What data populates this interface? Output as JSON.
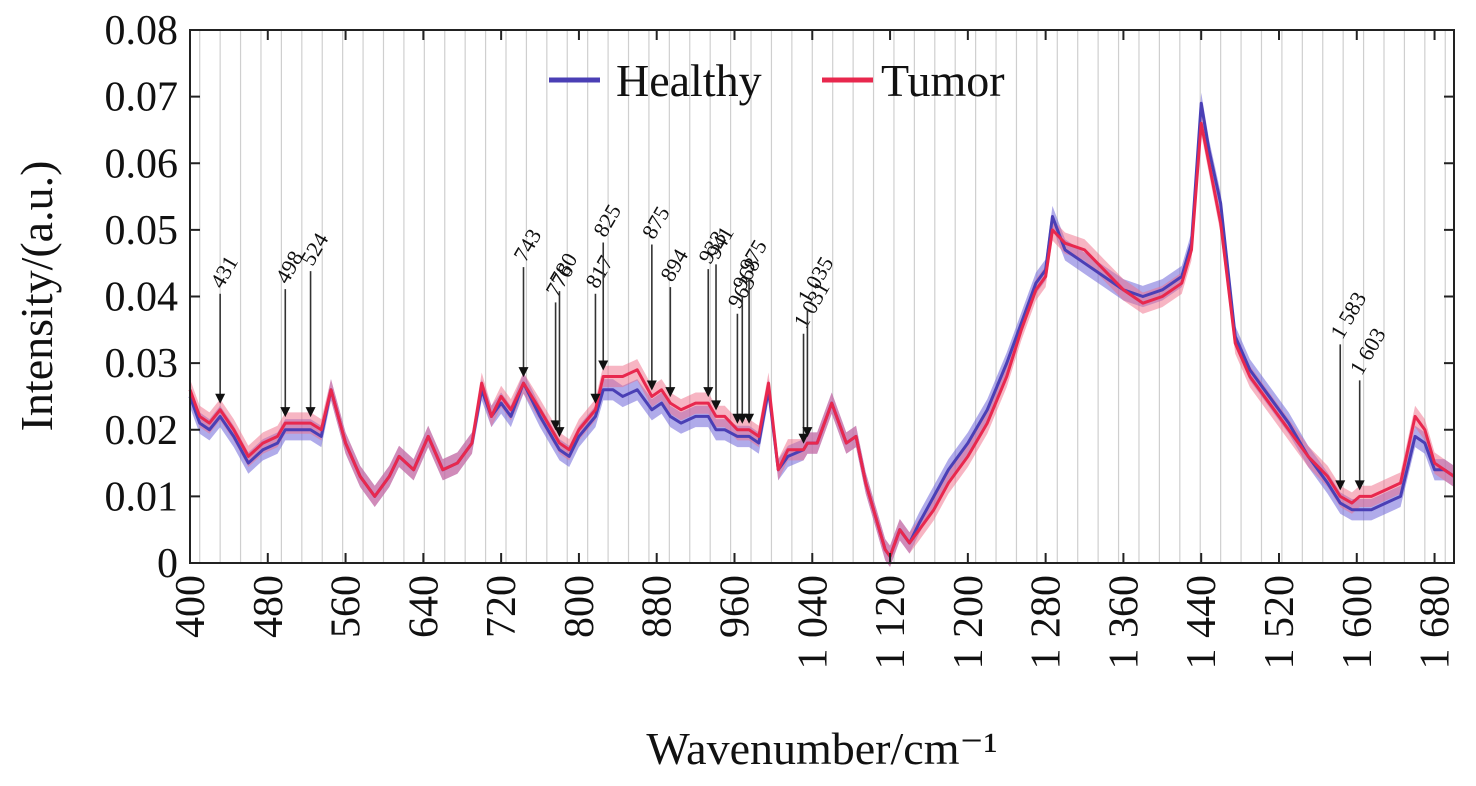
{
  "chart_data": {
    "type": "line",
    "xlabel": "Wavenumber/cm⁻¹",
    "ylabel": "Intensity/(a.u.)",
    "xlim": [
      400,
      1700
    ],
    "ylim": [
      0,
      0.08
    ],
    "x_ticks": [
      400,
      480,
      560,
      640,
      720,
      800,
      880,
      960,
      1040,
      1120,
      1200,
      1280,
      1360,
      1440,
      1520,
      1600,
      1680
    ],
    "x_tick_labels": [
      "400",
      "480",
      "560",
      "640",
      "720",
      "800",
      "880",
      "960",
      "1 040",
      "1 120",
      "1 200",
      "1 280",
      "1 360",
      "1 440",
      "1 520",
      "1 600",
      "1 680"
    ],
    "y_ticks": [
      0,
      0.01,
      0.02,
      0.03,
      0.04,
      0.05,
      0.06,
      0.07,
      0.08
    ],
    "y_tick_labels": [
      "0",
      "0.01",
      "0.02",
      "0.03",
      "0.04",
      "0.05",
      "0.06",
      "0.07",
      "0.08"
    ],
    "legend_position": "top-center",
    "grid": "vertical lines at marked peaks",
    "x": [
      400,
      410,
      420,
      431,
      445,
      460,
      475,
      490,
      498,
      510,
      524,
      535,
      545,
      560,
      575,
      590,
      605,
      615,
      630,
      645,
      660,
      675,
      690,
      700,
      710,
      720,
      730,
      743,
      760,
      776,
      780,
      790,
      800,
      817,
      825,
      835,
      845,
      860,
      875,
      885,
      894,
      905,
      920,
      933,
      941,
      950,
      963,
      968,
      975,
      985,
      995,
      1005,
      1015,
      1031,
      1035,
      1045,
      1060,
      1075,
      1085,
      1095,
      1105,
      1115,
      1120,
      1130,
      1140,
      1150,
      1165,
      1180,
      1200,
      1220,
      1240,
      1255,
      1270,
      1280,
      1287,
      1300,
      1320,
      1340,
      1360,
      1380,
      1400,
      1420,
      1430,
      1440,
      1448,
      1460,
      1475,
      1490,
      1510,
      1530,
      1550,
      1570,
      1583,
      1595,
      1603,
      1615,
      1630,
      1645,
      1660,
      1670,
      1680,
      1690,
      1700
    ],
    "series": [
      {
        "name": "Healthy",
        "color": "#4a3fb5",
        "band_color": "#6f66d9",
        "values": [
          0.025,
          0.021,
          0.02,
          0.022,
          0.019,
          0.015,
          0.017,
          0.018,
          0.02,
          0.02,
          0.02,
          0.019,
          0.026,
          0.018,
          0.013,
          0.01,
          0.013,
          0.016,
          0.014,
          0.019,
          0.014,
          0.015,
          0.018,
          0.026,
          0.022,
          0.024,
          0.022,
          0.027,
          0.022,
          0.018,
          0.017,
          0.016,
          0.019,
          0.022,
          0.026,
          0.026,
          0.025,
          0.026,
          0.023,
          0.024,
          0.022,
          0.021,
          0.022,
          0.022,
          0.02,
          0.02,
          0.019,
          0.019,
          0.019,
          0.018,
          0.026,
          0.014,
          0.016,
          0.017,
          0.018,
          0.018,
          0.024,
          0.018,
          0.019,
          0.012,
          0.007,
          0.002,
          0.001,
          0.005,
          0.003,
          0.006,
          0.01,
          0.014,
          0.018,
          0.023,
          0.03,
          0.036,
          0.042,
          0.044,
          0.052,
          0.047,
          0.045,
          0.043,
          0.041,
          0.04,
          0.041,
          0.043,
          0.048,
          0.069,
          0.062,
          0.054,
          0.034,
          0.029,
          0.025,
          0.021,
          0.016,
          0.012,
          0.009,
          0.008,
          0.008,
          0.008,
          0.009,
          0.01,
          0.019,
          0.018,
          0.014,
          0.014,
          0.013
        ]
      },
      {
        "name": "Tumor",
        "color": "#e8284e",
        "band_color": "#f06b88",
        "values": [
          0.026,
          0.022,
          0.021,
          0.023,
          0.02,
          0.016,
          0.018,
          0.019,
          0.021,
          0.021,
          0.021,
          0.02,
          0.026,
          0.018,
          0.013,
          0.01,
          0.013,
          0.016,
          0.014,
          0.019,
          0.014,
          0.015,
          0.018,
          0.027,
          0.022,
          0.025,
          0.023,
          0.027,
          0.023,
          0.019,
          0.018,
          0.017,
          0.02,
          0.023,
          0.028,
          0.028,
          0.028,
          0.029,
          0.025,
          0.026,
          0.024,
          0.023,
          0.024,
          0.024,
          0.022,
          0.022,
          0.02,
          0.02,
          0.02,
          0.019,
          0.027,
          0.014,
          0.017,
          0.017,
          0.018,
          0.018,
          0.024,
          0.018,
          0.019,
          0.012,
          0.007,
          0.002,
          0.001,
          0.005,
          0.003,
          0.005,
          0.008,
          0.012,
          0.016,
          0.021,
          0.028,
          0.035,
          0.041,
          0.043,
          0.05,
          0.048,
          0.047,
          0.044,
          0.041,
          0.039,
          0.04,
          0.042,
          0.047,
          0.066,
          0.06,
          0.051,
          0.033,
          0.028,
          0.024,
          0.02,
          0.016,
          0.013,
          0.01,
          0.009,
          0.01,
          0.01,
          0.011,
          0.012,
          0.022,
          0.02,
          0.015,
          0.014,
          0.013
        ]
      }
    ],
    "annotations": [
      {
        "label": "431",
        "x": 431
      },
      {
        "label": "498",
        "x": 498
      },
      {
        "label": "524",
        "x": 524
      },
      {
        "label": "743",
        "x": 743
      },
      {
        "label": "776",
        "x": 776
      },
      {
        "label": "780",
        "x": 780
      },
      {
        "label": "817",
        "x": 817
      },
      {
        "label": "825",
        "x": 825
      },
      {
        "label": "875",
        "x": 875
      },
      {
        "label": "894",
        "x": 894
      },
      {
        "label": "933",
        "x": 933
      },
      {
        "label": "941",
        "x": 941
      },
      {
        "label": "963",
        "x": 963
      },
      {
        "label": "968",
        "x": 968
      },
      {
        "label": "975",
        "x": 975
      },
      {
        "label": "1 031",
        "x": 1031
      },
      {
        "label": "1 035",
        "x": 1035
      },
      {
        "label": "1 583",
        "x": 1583
      },
      {
        "label": "1 603",
        "x": 1603
      }
    ]
  }
}
